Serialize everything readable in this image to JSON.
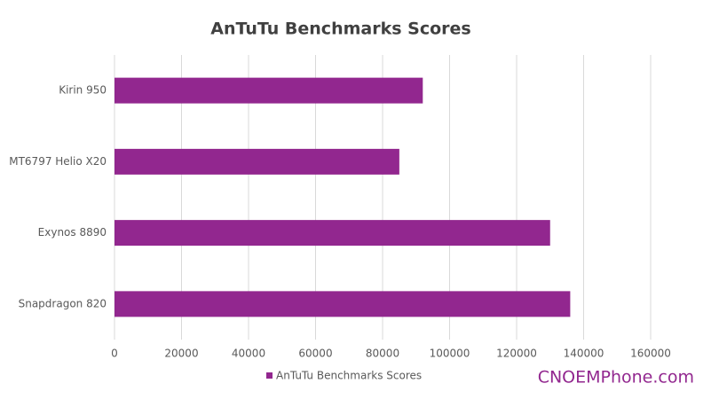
{
  "chart_data": {
    "type": "hbar",
    "title": "AnTuTu Benchmarks Scores",
    "categories": [
      "Kirin 950",
      "MT6797 Helio X20",
      "Exynos 8890",
      "Snapdragon 820"
    ],
    "series": [
      {
        "name": "AnTuTu Benchmarks Scores",
        "color": "#92278f",
        "values": [
          92000,
          85000,
          130000,
          136000
        ]
      }
    ],
    "xlim": [
      0,
      160000
    ],
    "xticks": [
      0,
      20000,
      40000,
      60000,
      80000,
      100000,
      120000,
      140000,
      160000
    ],
    "grid": true,
    "legend": "bottom",
    "watermark": "CNOEMPhone.com"
  }
}
